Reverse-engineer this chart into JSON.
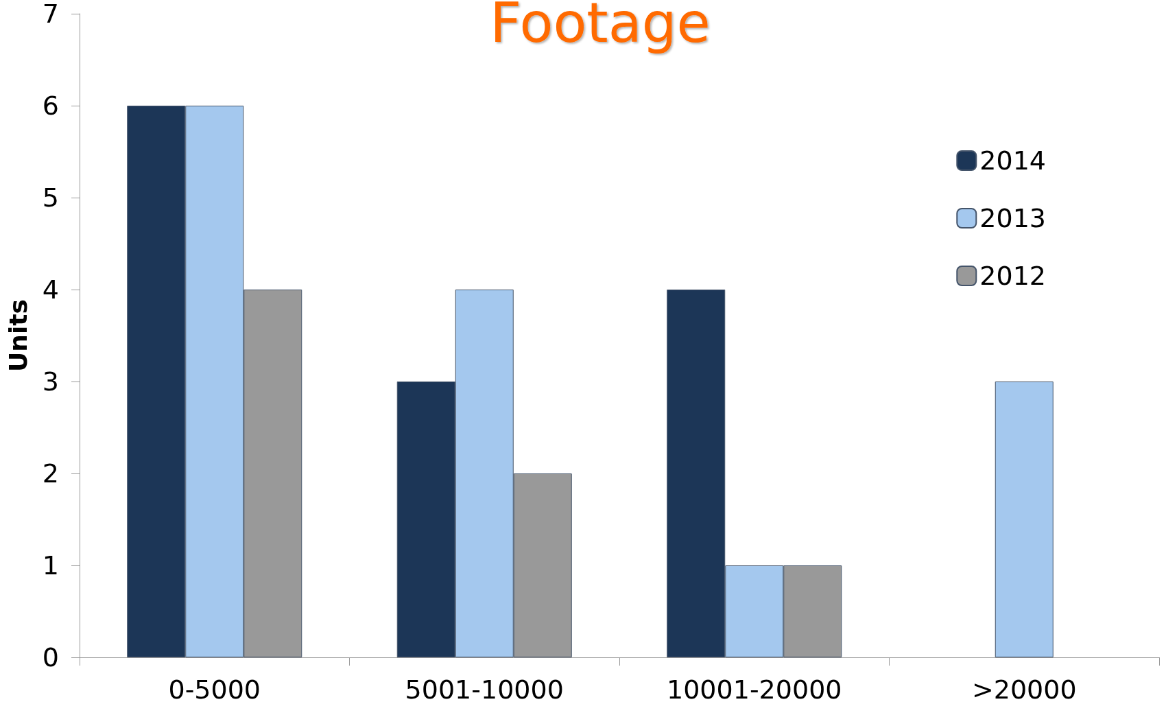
{
  "chart_data": {
    "type": "bar",
    "title": "Footage",
    "ylabel": "Units",
    "categories": [
      "0-5000",
      "5001-10000",
      "10001-20000",
      ">20000"
    ],
    "series": [
      {
        "name": "2014",
        "color": "#1c3657",
        "values": [
          6,
          3,
          4,
          null
        ]
      },
      {
        "name": "2013",
        "color": "#a4c8ee",
        "values": [
          6,
          4,
          1,
          3
        ]
      },
      {
        "name": "2012",
        "color": "#999999",
        "values": [
          4,
          2,
          1,
          null
        ]
      }
    ],
    "ylim": [
      0,
      7
    ],
    "yticks": [
      0,
      1,
      2,
      3,
      4,
      5,
      6,
      7
    ],
    "grid": false,
    "legend": "top right"
  }
}
